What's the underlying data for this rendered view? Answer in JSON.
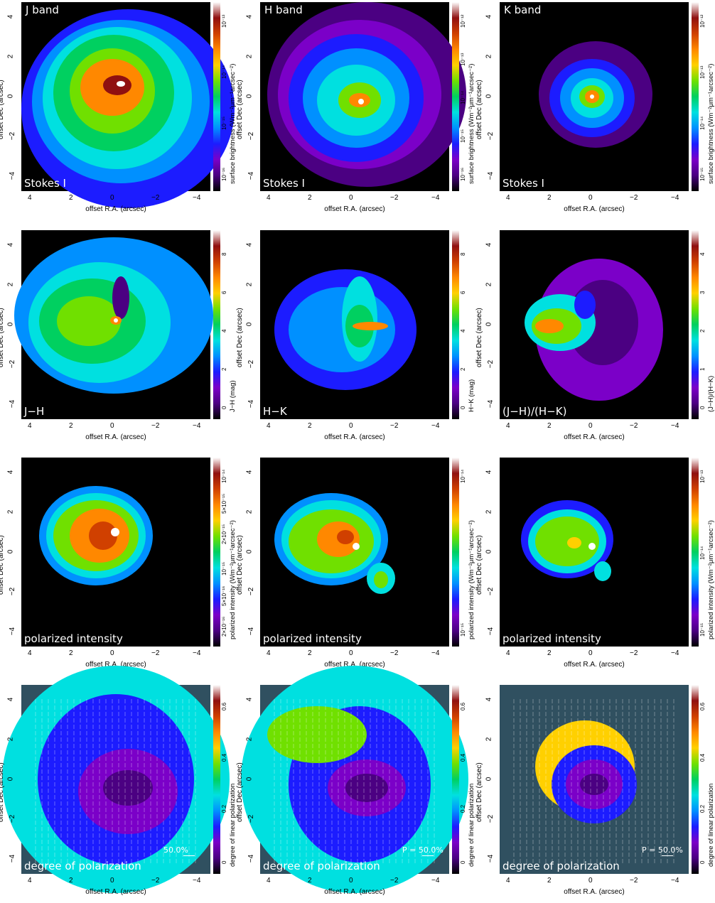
{
  "axes": {
    "xlabel": "offset R.A. (arcsec)",
    "ylabel": "offset Dec (arcsec)",
    "xticks": [
      "4",
      "2",
      "0",
      "−2",
      "−4"
    ],
    "yticks": [
      "4",
      "2",
      "0",
      "−2",
      "−4"
    ]
  },
  "panels": [
    {
      "id": "j-stokes",
      "title": "J band",
      "label": "Stokes I",
      "cbar_label": "surface brightness (Wm⁻²μm⁻¹arcsec⁻²)",
      "cbar_ticks": [
        "10⁻¹³",
        "10⁻¹⁴",
        "10⁻¹⁵",
        "10⁻¹⁶"
      ],
      "scheme": "flux",
      "scale": ""
    },
    {
      "id": "h-stokes",
      "title": "H band",
      "label": "Stokes I",
      "cbar_label": "surface brightness (Wm⁻²μm⁻¹arcsec⁻²)",
      "cbar_ticks": [
        "10⁻¹²",
        "10⁻¹³",
        "10⁻¹⁴",
        "10⁻¹⁵",
        "10⁻¹⁶"
      ],
      "scheme": "flux",
      "scale": ""
    },
    {
      "id": "k-stokes",
      "title": "K band",
      "label": "Stokes I",
      "cbar_label": "surface brightness (Wm⁻²μm⁻¹arcsec⁻²)",
      "cbar_ticks": [
        "10⁻¹²",
        "10⁻¹³",
        "10⁻¹⁴",
        "10⁻¹⁵"
      ],
      "scheme": "flux",
      "scale": ""
    },
    {
      "id": "j-h",
      "title": "",
      "label": "J−H",
      "cbar_label": "J−H (mag)",
      "cbar_ticks": [
        "8",
        "6",
        "4",
        "2",
        "0"
      ],
      "scheme": "color",
      "scale": ""
    },
    {
      "id": "h-k",
      "title": "",
      "label": "H−K",
      "cbar_label": "H−K (mag)",
      "cbar_ticks": [
        "8",
        "6",
        "4",
        "2",
        "0"
      ],
      "scheme": "color",
      "scale": ""
    },
    {
      "id": "jh-hk",
      "title": "",
      "label": "(J−H)/(H−K)",
      "cbar_label": "(J−H)/(H−K)",
      "cbar_ticks": [
        "4",
        "3",
        "2",
        "1",
        "0"
      ],
      "scheme": "color",
      "scale": ""
    },
    {
      "id": "j-pi",
      "title": "",
      "label": "polarized intensity",
      "cbar_label": "polarized intensity (Wm⁻²μm⁻¹arcsec⁻²)",
      "cbar_ticks": [
        "10⁻¹⁴",
        "5×10⁻¹⁵",
        "2×10⁻¹⁵",
        "10⁻¹⁵",
        "5×10⁻¹⁶",
        "2×10⁻¹⁶"
      ],
      "scheme": "pi",
      "scale": ""
    },
    {
      "id": "h-pi",
      "title": "",
      "label": "polarized intensity",
      "cbar_label": "polarized intensity (Wm⁻²μm⁻¹arcsec⁻²)",
      "cbar_ticks": [
        "10⁻¹⁴",
        "10⁻¹⁵"
      ],
      "scheme": "pi",
      "scale": ""
    },
    {
      "id": "k-pi",
      "title": "",
      "label": "polarized intensity",
      "cbar_label": "polarized intensity (Wm⁻²μm⁻¹arcsec⁻²)",
      "cbar_ticks": [
        "10⁻¹³",
        "10⁻¹⁴",
        "10⁻¹⁵"
      ],
      "scheme": "pi",
      "scale": ""
    },
    {
      "id": "j-dp",
      "title": "",
      "label": "degree of polarization",
      "cbar_label": "degree of linear polarization",
      "cbar_ticks": [
        "0.6",
        "0.4",
        "0.2",
        "0"
      ],
      "scheme": "dop",
      "scale": "50.0%"
    },
    {
      "id": "h-dp",
      "title": "",
      "label": "degree of polarization",
      "cbar_label": "degree of linear polarization",
      "cbar_ticks": [
        "0.6",
        "0.4",
        "0.2",
        "0"
      ],
      "scheme": "dop",
      "scale": "P = 50.0%"
    },
    {
      "id": "k-dp",
      "title": "",
      "label": "degree of polarization",
      "cbar_label": "degree of linear polarization",
      "cbar_ticks": [
        "0.6",
        "0.4",
        "0.2",
        "0"
      ],
      "scheme": "dop",
      "scale": "P = 50.0%"
    }
  ]
}
